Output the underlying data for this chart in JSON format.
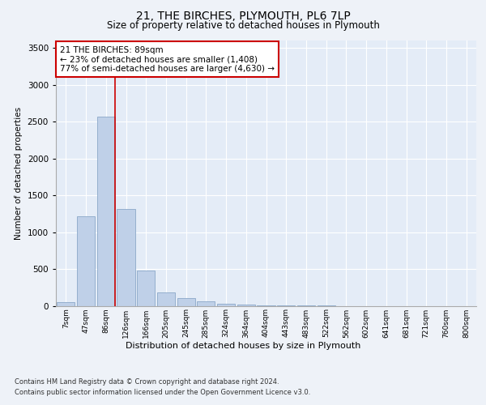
{
  "title1": "21, THE BIRCHES, PLYMOUTH, PL6 7LP",
  "title2": "Size of property relative to detached houses in Plymouth",
  "xlabel": "Distribution of detached houses by size in Plymouth",
  "ylabel": "Number of detached properties",
  "categories": [
    "7sqm",
    "47sqm",
    "86sqm",
    "126sqm",
    "166sqm",
    "205sqm",
    "245sqm",
    "285sqm",
    "324sqm",
    "364sqm",
    "404sqm",
    "443sqm",
    "483sqm",
    "522sqm",
    "562sqm",
    "602sqm",
    "641sqm",
    "681sqm",
    "721sqm",
    "760sqm",
    "800sqm"
  ],
  "values": [
    50,
    1220,
    2570,
    1310,
    480,
    185,
    100,
    55,
    30,
    20,
    10,
    5,
    2,
    1,
    0,
    0,
    0,
    0,
    0,
    0,
    0
  ],
  "bar_color": "#bfd0e8",
  "bar_edge_color": "#8ba8c8",
  "vline_color": "#cc0000",
  "vline_pos": 2.45,
  "annotation_text": "21 THE BIRCHES: 89sqm\n← 23% of detached houses are smaller (1,408)\n77% of semi-detached houses are larger (4,630) →",
  "annotation_box_color": "#ffffff",
  "annotation_box_edge": "#cc0000",
  "ylim": [
    0,
    3600
  ],
  "yticks": [
    0,
    500,
    1000,
    1500,
    2000,
    2500,
    3000,
    3500
  ],
  "footer1": "Contains HM Land Registry data © Crown copyright and database right 2024.",
  "footer2": "Contains public sector information licensed under the Open Government Licence v3.0.",
  "background_color": "#eef2f8",
  "plot_bg_color": "#e4ecf7"
}
